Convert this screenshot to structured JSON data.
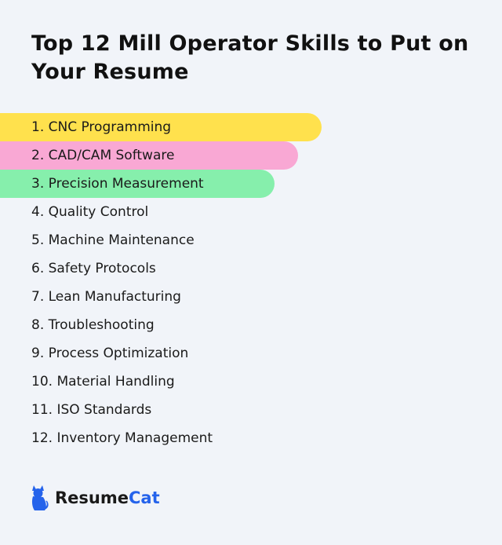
{
  "title": "Top 12 Mill Operator Skills to Put on Your Resume",
  "skills": [
    "1. CNC Programming",
    "2. CAD/CAM Software",
    "3. Precision Measurement",
    "4. Quality Control",
    "5. Machine Maintenance",
    "6. Safety Protocols",
    "7. Lean Manufacturing",
    "8. Troubleshooting",
    "9. Process Optimization",
    "10. Material Handling",
    "11. ISO Standards",
    "12. Inventory Management"
  ],
  "highlight_colors": [
    "#ffe14d",
    "#f9a8d4",
    "#86efac"
  ],
  "brand": {
    "name_part1": "Resume",
    "name_part2": "Cat",
    "icon": "cat-icon",
    "accent_color": "#2563eb"
  }
}
